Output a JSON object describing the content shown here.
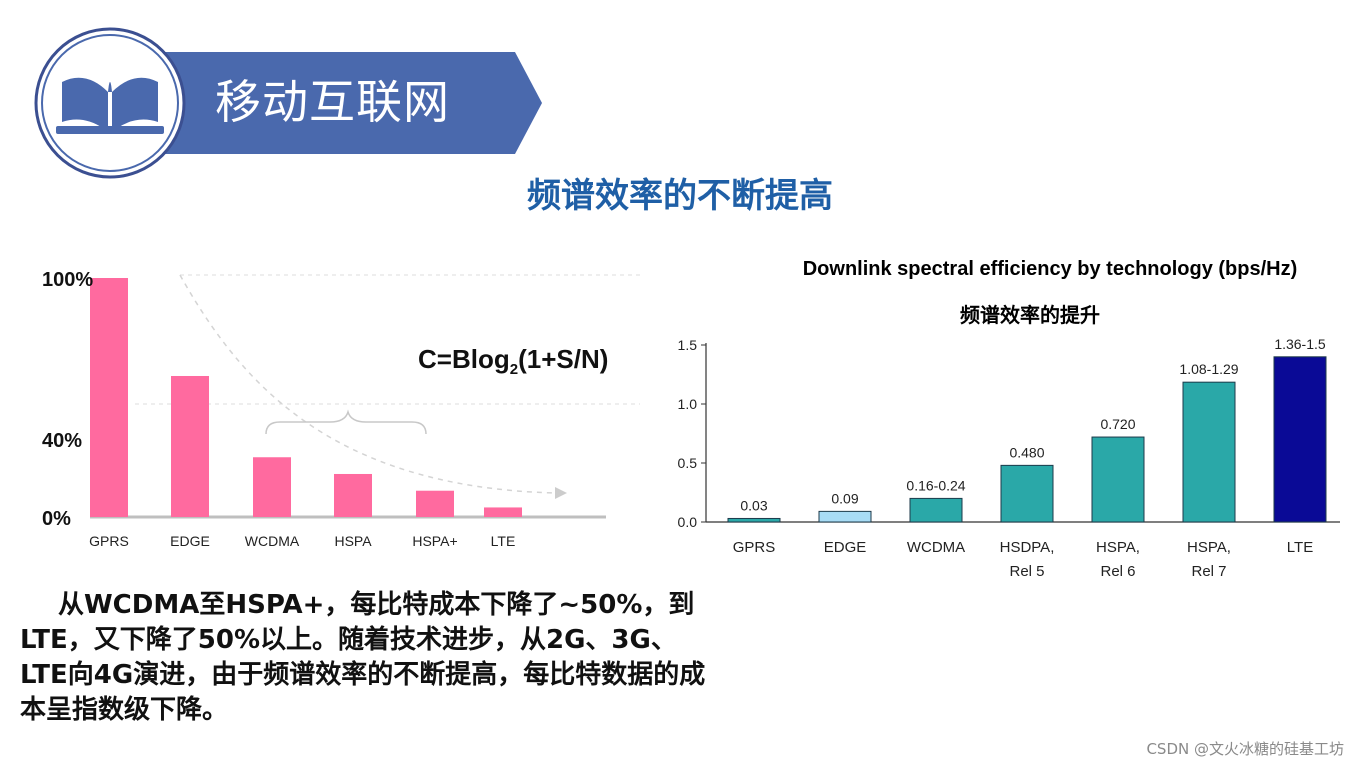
{
  "banner": {
    "title": "移动互联网"
  },
  "slide_title": "频谱效率的不断提高",
  "formula": {
    "prefix": "C=Blog",
    "sub": "2",
    "suffix": "(1+S/N)"
  },
  "paragraph": "从WCDMA至HSPA+，每比特成本下降了~50%，到LTE，又下降了50%以上。随着技术进步，从2G、3G、LTE向4G演进，由于频谱效率的不断提高，每比特数据的成本呈指数级下降。",
  "watermark": "CSDN @文火冰糖的硅基工坊",
  "colors": {
    "banner": "#4a69ad",
    "title": "#1f5fa6",
    "pink": "#ff6a9f",
    "teal": "#2aa8a8",
    "light_blue": "#a8dcf5",
    "navy": "#0a0a96"
  },
  "chart_data": [
    {
      "type": "bar",
      "categories": [
        "GPRS",
        "EDGE",
        "WCDMA",
        "HSPA",
        "HSPA+",
        "LTE"
      ],
      "values": [
        100,
        59,
        25,
        18,
        11,
        4
      ],
      "y_tick_labels": [
        "100%",
        "40%",
        "0%"
      ],
      "y_tick_values": [
        100,
        40,
        0
      ],
      "ylim": [
        0,
        100
      ],
      "color": "#ff6a9f"
    },
    {
      "type": "bar",
      "title": "Downlink spectral efficiency by technology   (bps/Hz)",
      "subtitle": "频谱效率的提升",
      "categories": [
        [
          "GPRS"
        ],
        [
          "EDGE"
        ],
        [
          "WCDMA"
        ],
        [
          "HSDPA,",
          "Rel 5"
        ],
        [
          "HSPA,",
          "Rel 6"
        ],
        [
          "HSPA,",
          "Rel 7"
        ],
        [
          "LTE"
        ]
      ],
      "values": [
        0.03,
        0.09,
        0.2,
        0.48,
        0.72,
        1.185,
        1.4
      ],
      "data_labels": [
        "0.03",
        "0.09",
        "0.16-0.24",
        "0.480",
        "0.720",
        "1.08-1.29",
        "1.36-1.5"
      ],
      "colors": [
        "#2aa8a8",
        "#a8dcf5",
        "#2aa8a8",
        "#2aa8a8",
        "#2aa8a8",
        "#2aa8a8",
        "#0a0a96"
      ],
      "y_ticks": [
        "0.0",
        "0.5",
        "1.0",
        "1.5"
      ],
      "ylim": [
        0,
        1.5
      ]
    }
  ]
}
